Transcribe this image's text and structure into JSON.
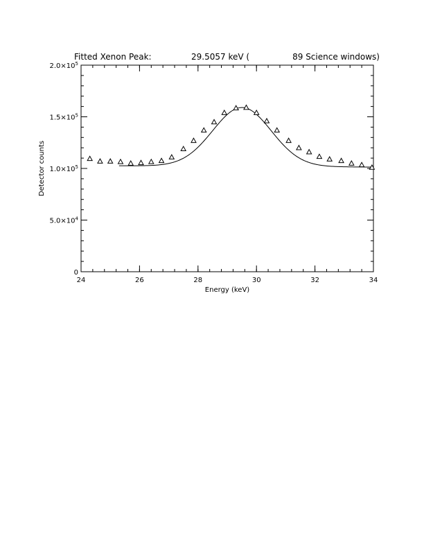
{
  "chart_data": {
    "type": "scatter",
    "title": {
      "prefix": "Fitted Xenon Peak:",
      "value": "29.5057 keV (",
      "suffix": "89 Science windows)"
    },
    "xlabel": "Energy (keV)",
    "ylabel": "Detector counts",
    "xlim": [
      24,
      34
    ],
    "ylim": [
      0,
      200000
    ],
    "x_ticks": [
      {
        "value": 24,
        "label": "24"
      },
      {
        "value": 26,
        "label": "26"
      },
      {
        "value": 28,
        "label": "28"
      },
      {
        "value": 30,
        "label": "30"
      },
      {
        "value": 32,
        "label": "32"
      },
      {
        "value": 34,
        "label": "34"
      }
    ],
    "y_ticks": [
      {
        "value": 0,
        "mant": "0",
        "exp": ""
      },
      {
        "value": 50000,
        "mant": "5.0×10",
        "exp": "4"
      },
      {
        "value": 100000,
        "mant": "1.0×10",
        "exp": "5"
      },
      {
        "value": 150000,
        "mant": "1.5×10",
        "exp": "5"
      },
      {
        "value": 200000,
        "mant": "2.0×10",
        "exp": "5"
      }
    ],
    "x_minor_step": 0.4,
    "y_minor_step": 10000,
    "grid": false,
    "series": [
      {
        "type": "scatter",
        "marker": "triangle",
        "x": [
          24.3,
          24.65,
          25.0,
          25.35,
          25.7,
          26.05,
          26.4,
          26.75,
          27.1,
          27.5,
          27.85,
          28.2,
          28.55,
          28.9,
          29.3,
          29.65,
          30.0,
          30.35,
          30.7,
          31.1,
          31.45,
          31.8,
          32.15,
          32.5,
          32.9,
          33.25,
          33.6,
          33.95
        ],
        "y": [
          109500,
          107000,
          107000,
          106500,
          105000,
          105500,
          106500,
          107500,
          111000,
          119000,
          127000,
          137000,
          145000,
          154000,
          158500,
          159000,
          154000,
          146000,
          137000,
          127000,
          120000,
          116000,
          111500,
          109000,
          107500,
          105000,
          103500,
          101000
        ]
      },
      {
        "type": "line",
        "model": "gaussian_plus_baseline",
        "x_range": [
          25.3,
          34.0
        ],
        "peak": 29.5057,
        "baseline": 102000,
        "amplitude": 57000,
        "sigma": 1.0,
        "slope": -150
      }
    ]
  }
}
